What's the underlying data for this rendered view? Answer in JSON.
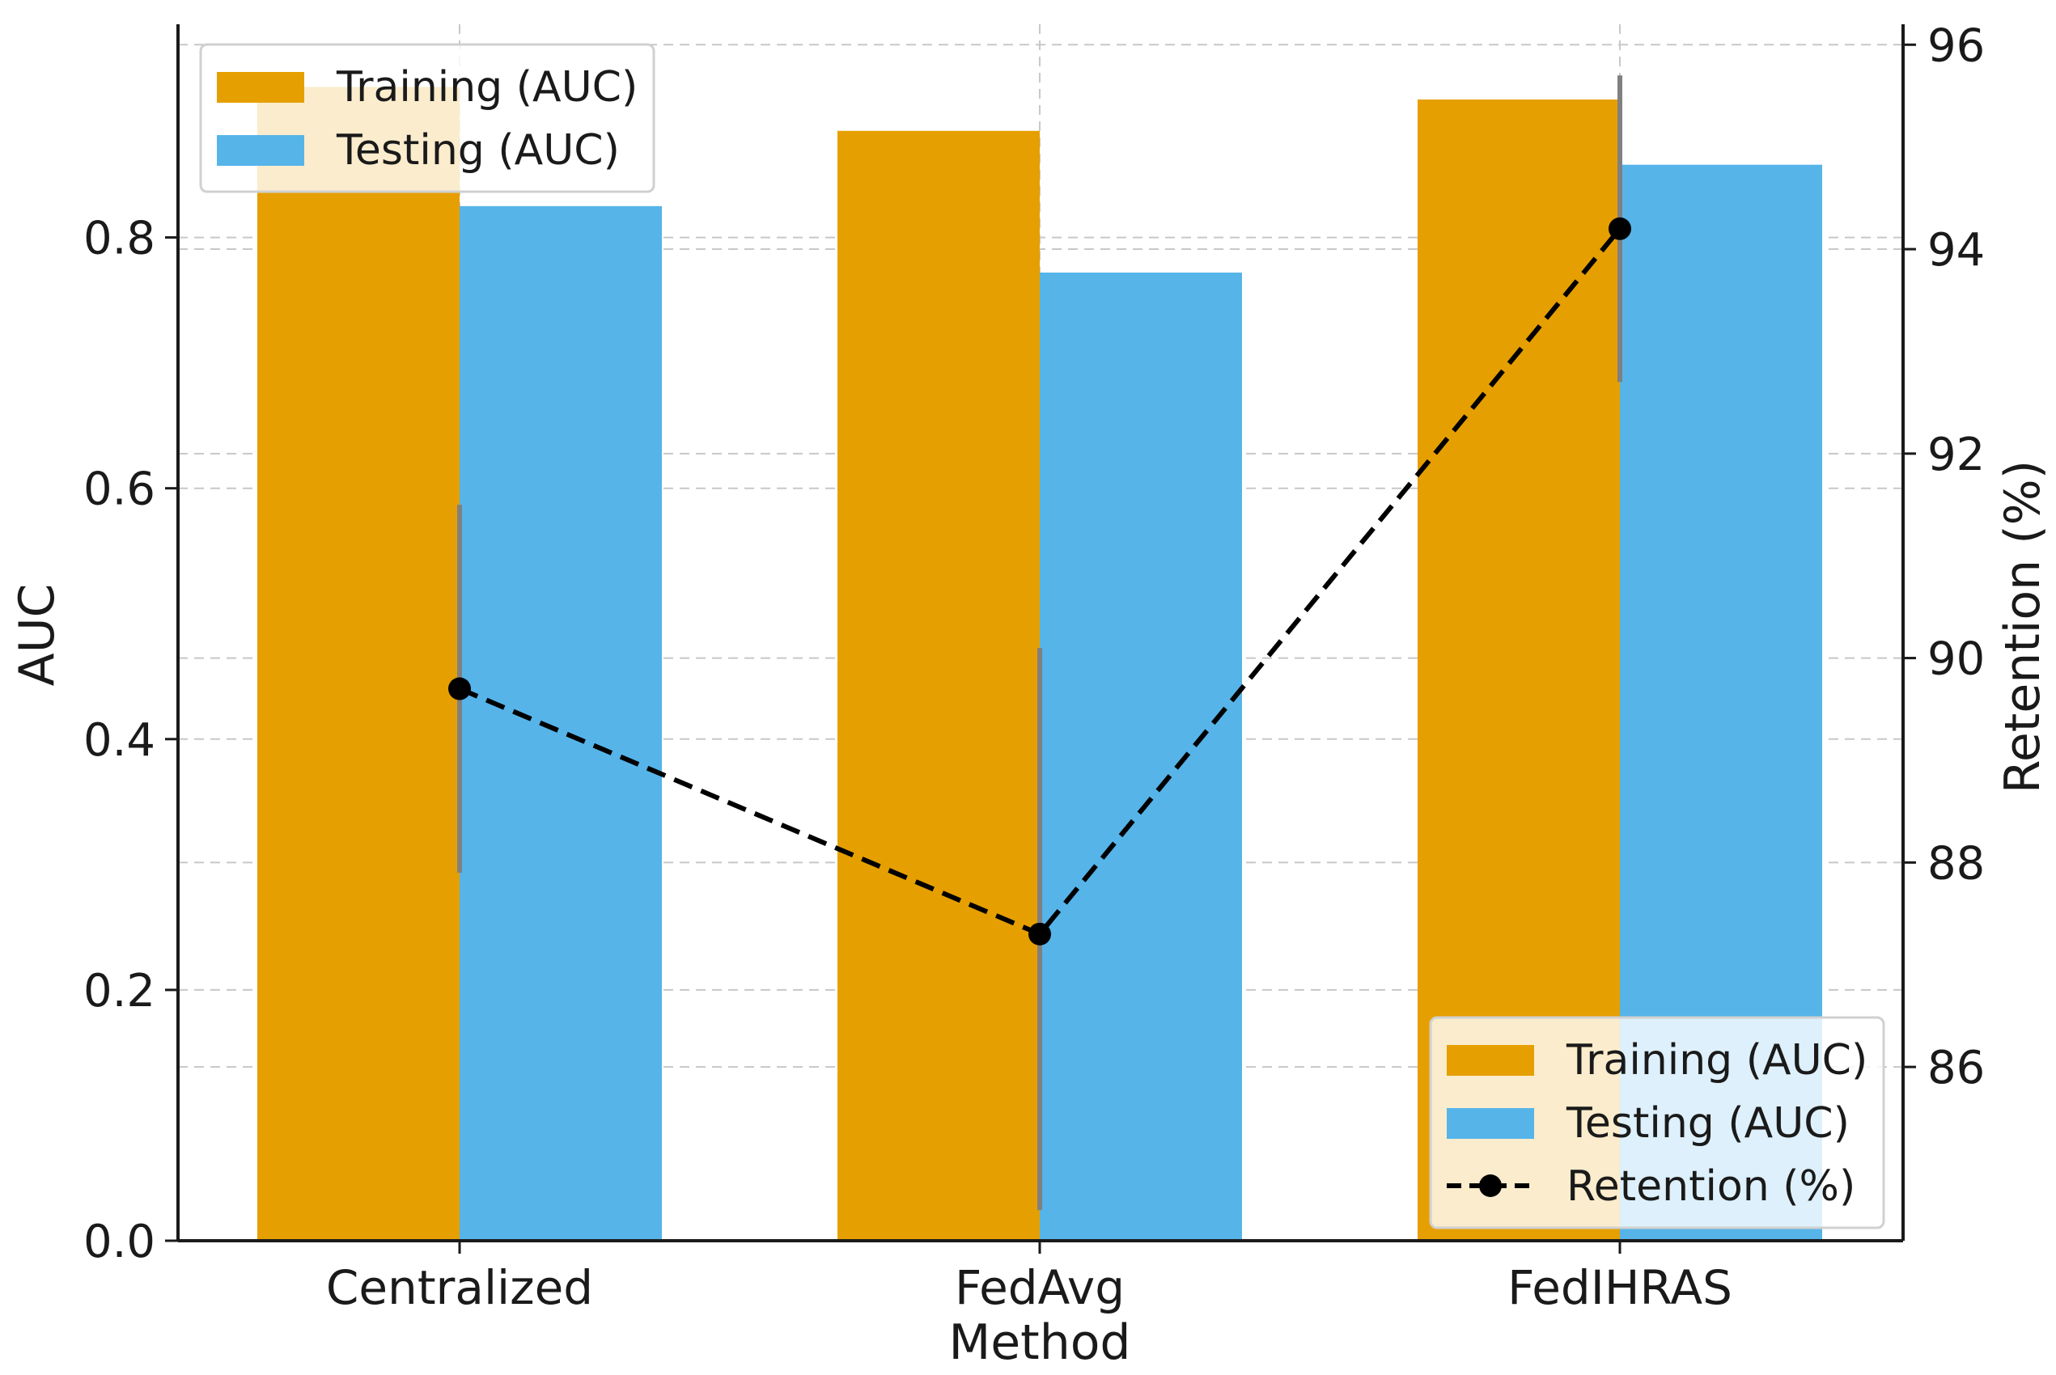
{
  "chart_data": {
    "type": "bar",
    "categories": [
      "Centralized",
      "FedAvg",
      "FedIHRAS"
    ],
    "series": [
      {
        "name": "Training (AUC)",
        "axis": "left",
        "kind": "bar",
        "color": "#E69F00",
        "values": [
          0.92,
          0.885,
          0.91
        ]
      },
      {
        "name": "Testing (AUC)",
        "axis": "left",
        "kind": "bar",
        "color": "#56B4E9",
        "values": [
          0.825,
          0.772,
          0.858
        ]
      },
      {
        "name": "Retention (%)",
        "axis": "right",
        "kind": "line",
        "color": "#000000",
        "style": "dashed",
        "marker": "circle",
        "values": [
          89.7,
          87.3,
          94.2
        ],
        "error_low": [
          87.9,
          84.6,
          92.7
        ],
        "error_high": [
          91.5,
          90.1,
          95.7
        ],
        "error_color": "#808080"
      }
    ],
    "xlabel": "Method",
    "ylabel": "AUC",
    "y2label": "Retention (%)",
    "ylim": [
      0,
      0.97
    ],
    "yticks": [
      0.0,
      0.2,
      0.4,
      0.6,
      0.8
    ],
    "ytick_labels": [
      "0.0",
      "0.2",
      "0.4",
      "0.6",
      "0.8"
    ],
    "y2lim": [
      84.3,
      96.2
    ],
    "y2ticks": [
      86,
      88,
      90,
      92,
      94,
      96
    ],
    "y2tick_labels": [
      "86",
      "88",
      "90",
      "92",
      "94",
      "96"
    ],
    "grid": true,
    "legends": [
      {
        "placement": "top-left",
        "entries": [
          "Training (AUC)",
          "Testing (AUC)"
        ]
      },
      {
        "placement": "bottom-right",
        "entries": [
          "Training (AUC)",
          "Testing (AUC)",
          "Retention (%)"
        ]
      }
    ]
  }
}
